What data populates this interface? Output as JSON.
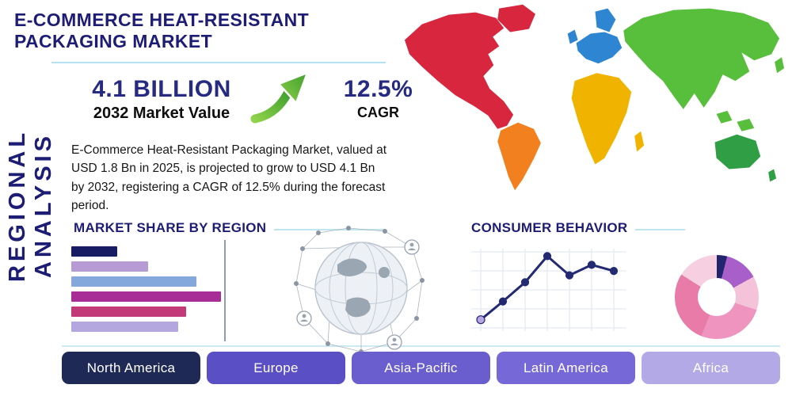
{
  "page": {
    "title": "E-COMMERCE HEAT-RESISTANT PACKAGING MARKET",
    "vertical_label": "REGIONAL ANALYSIS"
  },
  "stats": {
    "market_value": "4.1 BILLION",
    "market_value_caption": "2032 Market Value",
    "cagr_value": "12.5%",
    "cagr_caption": "CAGR",
    "arrow_color": "#5fb832"
  },
  "description": "E-Commerce Heat-Resistant Packaging Market, valued at USD 1.8 Bn in 2025, is projected to grow to USD 4.1 Bn by 2032, registering a CAGR of 12.5% during the forecast period.",
  "sections": {
    "market_share_heading": "MARKET SHARE BY REGION",
    "consumer_behavior_heading": "CONSUMER BEHAVIOR"
  },
  "region_buttons": [
    {
      "label": "North America",
      "color": "#1e2a55"
    },
    {
      "label": "Europe",
      "color": "#5a4fc4"
    },
    {
      "label": "Asia-Pacific",
      "color": "#6a5ecf"
    },
    {
      "label": "Latin America",
      "color": "#7668d6"
    },
    {
      "label": "Africa",
      "color": "#b3a9e6"
    }
  ],
  "map": {
    "continents": [
      {
        "name": "north-america",
        "color": "#d7263d"
      },
      {
        "name": "greenland",
        "color": "#d7263d"
      },
      {
        "name": "south-america",
        "color": "#f2801e"
      },
      {
        "name": "europe",
        "color": "#2e86d3"
      },
      {
        "name": "africa",
        "color": "#f0b400"
      },
      {
        "name": "asia",
        "color": "#58bf3c"
      },
      {
        "name": "australia",
        "color": "#2f9e44"
      }
    ]
  },
  "chart_data": [
    {
      "type": "bar",
      "title": "MARKET SHARE BY REGION",
      "orientation": "horizontal",
      "categories": [
        "",
        "",
        "",
        "",
        "",
        ""
      ],
      "values": [
        30,
        50,
        82,
        98,
        75,
        70
      ],
      "value_note": "relative bar lengths estimated from pixels (max = 100); bars are unlabeled in image",
      "colors": [
        "#181d63",
        "#b79bd4",
        "#85a8dc",
        "#a82d96",
        "#c23a77",
        "#b4a6df"
      ],
      "grid": false
    },
    {
      "type": "line",
      "title": "CONSUMER BEHAVIOR",
      "x": [
        1,
        2,
        3,
        4,
        5,
        6,
        7
      ],
      "values": [
        1.3,
        3.4,
        5.6,
        8.6,
        6.4,
        7.6,
        6.9
      ],
      "value_note": "trend estimated from pixels on a 0-10 scale; axes are unlabeled in image",
      "line_color": "#232a72",
      "marker_colors": [
        "#b7a6e2",
        "#232a72",
        "#232a72",
        "#232a72",
        "#232a72",
        "#232a72",
        "#232a72"
      ],
      "grid": true
    },
    {
      "type": "pie",
      "donut": true,
      "title": "",
      "slices": [
        {
          "value": 4,
          "color": "#23246e"
        },
        {
          "value": 13,
          "color": "#a95fc9"
        },
        {
          "value": 13,
          "color": "#f4c3da"
        },
        {
          "value": 26,
          "color": "#ef93bf"
        },
        {
          "value": 28,
          "color": "#e97ba9"
        },
        {
          "value": 16,
          "color": "#f6d0e0"
        }
      ],
      "value_note": "slice shares estimated from pixels; slices are unlabeled in image"
    }
  ]
}
